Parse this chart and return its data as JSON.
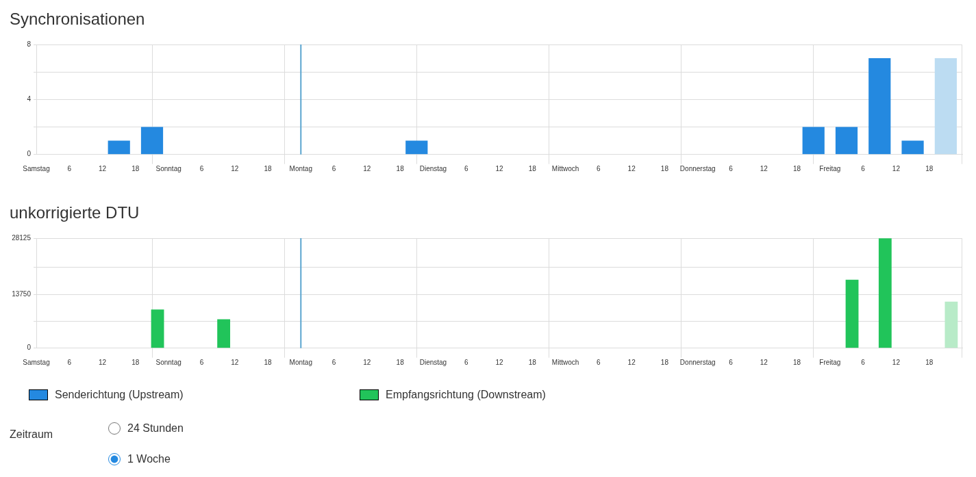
{
  "chart_data": [
    {
      "type": "bar",
      "title": "Synchronisationen",
      "x": [
        "--01-06T15:00",
        "--01-06T21:00",
        "--01-08T21:00",
        "--01-11T21:00",
        "--01-12T03:00",
        "--01-12T09:00",
        "--01-12T15:00",
        "--01-12T21:00"
      ],
      "series": [
        {
          "name": "Senderichtung (Upstream)",
          "color": "#2489e0",
          "colors": [
            "#2489e0",
            "#2489e0",
            "#2489e0",
            "#2489e0",
            "#2489e0",
            "#2489e0",
            "#2489e0",
            "#bcdcf2"
          ],
          "values": [
            1,
            2,
            1,
            2,
            2,
            7,
            1,
            7
          ]
        }
      ],
      "xlim": [
        "--01-06",
        "--01-13"
      ],
      "xticks": [
        {
          "value": "--01-06",
          "label": "Samstag"
        },
        {
          "value": "--01-06T06:00",
          "label": "6"
        },
        {
          "value": "--01-06T12:00",
          "label": "12"
        },
        {
          "value": "--01-06T18:00",
          "label": "18"
        },
        {
          "value": "--01-07",
          "label": "Sonntag"
        },
        {
          "value": "--01-07T06:00",
          "label": "6"
        },
        {
          "value": "--01-07T12:00",
          "label": "12"
        },
        {
          "value": "--01-07T18:00",
          "label": "18"
        },
        {
          "value": "--01-08",
          "label": "Montag"
        },
        {
          "value": "--01-08T06:00",
          "label": "6"
        },
        {
          "value": "--01-08T12:00",
          "label": "12"
        },
        {
          "value": "--01-08T18:00",
          "label": "18"
        },
        {
          "value": "--01-09",
          "label": "Dienstag"
        },
        {
          "value": "--01-09T06:00",
          "label": "6"
        },
        {
          "value": "--01-09T12:00",
          "label": "12"
        },
        {
          "value": "--01-09T18:00",
          "label": "18"
        },
        {
          "value": "--01-10",
          "label": "Mittwoch"
        },
        {
          "value": "--01-10T06:00",
          "label": "6"
        },
        {
          "value": "--01-10T12:00",
          "label": "12"
        },
        {
          "value": "--01-10T18:00",
          "label": "18"
        },
        {
          "value": "--01-11",
          "label": "Donnerstag"
        },
        {
          "value": "--01-11T06:00",
          "label": "6"
        },
        {
          "value": "--01-11T12:00",
          "label": "12"
        },
        {
          "value": "--01-11T18:00",
          "label": "18"
        },
        {
          "value": "--01-12",
          "label": "Freitag"
        },
        {
          "value": "--01-12T06:00",
          "label": "6"
        },
        {
          "value": "--01-12T12:00",
          "label": "12"
        },
        {
          "value": "--01-12T18:00",
          "label": "18"
        }
      ],
      "ylim": [
        0,
        8
      ],
      "yticks": [
        0,
        {
          "value": 2,
          "label": null
        },
        4,
        {
          "value": 6,
          "label": null
        },
        8
      ],
      "grid": true,
      "legend": "bottom",
      "ref_lines": [
        {
          "axis": "x",
          "value": "--01-08",
          "color": "#5aa5d0"
        }
      ]
    },
    {
      "type": "bar",
      "title": "unkorrigierte DTU",
      "x": [
        "--01-06T22:00",
        "--01-07T10:00",
        "--01-12T04:00",
        "--01-12T10:00",
        "--01-12T22:00"
      ],
      "series": [
        {
          "name": "Empfangsrichtung (Downstream)",
          "color": "#21c45a",
          "colors": [
            "#21c45a",
            "#21c45a",
            "#21c45a",
            "#21c45a",
            "#b8ebc8"
          ],
          "values": [
            9900,
            7400,
            17500,
            28100,
            11900
          ]
        }
      ],
      "xlim": [
        "--01-06",
        "--01-13"
      ],
      "xticks": [
        {
          "value": "--01-06",
          "label": "Samstag"
        },
        {
          "value": "--01-06T06:00",
          "label": "6"
        },
        {
          "value": "--01-06T12:00",
          "label": "12"
        },
        {
          "value": "--01-06T18:00",
          "label": "18"
        },
        {
          "value": "--01-07",
          "label": "Sonntag"
        },
        {
          "value": "--01-07T06:00",
          "label": "6"
        },
        {
          "value": "--01-07T12:00",
          "label": "12"
        },
        {
          "value": "--01-07T18:00",
          "label": "18"
        },
        {
          "value": "--01-08",
          "label": "Montag"
        },
        {
          "value": "--01-08T06:00",
          "label": "6"
        },
        {
          "value": "--01-08T12:00",
          "label": "12"
        },
        {
          "value": "--01-08T18:00",
          "label": "18"
        },
        {
          "value": "--01-09",
          "label": "Dienstag"
        },
        {
          "value": "--01-09T06:00",
          "label": "6"
        },
        {
          "value": "--01-09T12:00",
          "label": "12"
        },
        {
          "value": "--01-09T18:00",
          "label": "18"
        },
        {
          "value": "--01-10",
          "label": "Mittwoch"
        },
        {
          "value": "--01-10T06:00",
          "label": "6"
        },
        {
          "value": "--01-10T12:00",
          "label": "12"
        },
        {
          "value": "--01-10T18:00",
          "label": "18"
        },
        {
          "value": "--01-11",
          "label": "Donnerstag"
        },
        {
          "value": "--01-11T06:00",
          "label": "6"
        },
        {
          "value": "--01-11T12:00",
          "label": "12"
        },
        {
          "value": "--01-11T18:00",
          "label": "18"
        },
        {
          "value": "--01-12",
          "label": "Freitag"
        },
        {
          "value": "--01-12T06:00",
          "label": "6"
        },
        {
          "value": "--01-12T12:00",
          "label": "12"
        },
        {
          "value": "--01-12T18:00",
          "label": "18"
        }
      ],
      "ylim": [
        0,
        28125
      ],
      "yticks": [
        0,
        {
          "value": 6875,
          "label": null
        },
        13750,
        {
          "value": 20625,
          "label": null
        },
        28125
      ],
      "grid": true,
      "legend": "bottom",
      "ref_lines": [
        {
          "axis": "x",
          "value": "--01-08",
          "color": "#5aa5d0"
        }
      ]
    },
    {
      "type": "other",
      "title": "Zeitraum",
      "annotations": [
        "24 Stunden",
        "1 Woche"
      ]
    }
  ]
}
